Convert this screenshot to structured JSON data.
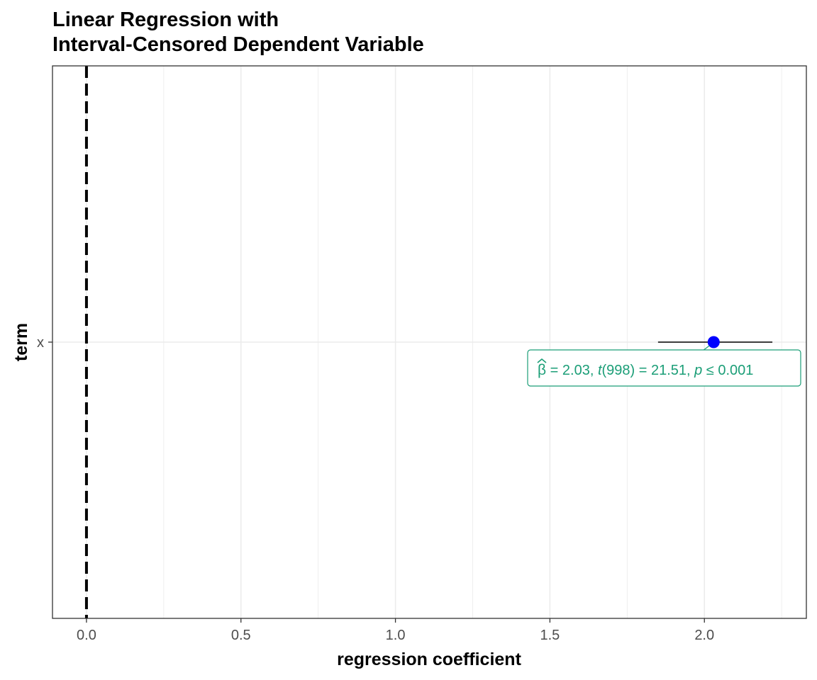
{
  "chart_data": {
    "type": "scatter",
    "title": "Linear Regression with\nInterval-Censored Dependent Variable",
    "xlabel": "regression coefficient",
    "ylabel": "term",
    "xlim": [
      -0.11,
      2.33
    ],
    "x_ticks": [
      0.0,
      0.5,
      1.0,
      1.5,
      2.0
    ],
    "x_tick_labels": [
      "0.0",
      "0.5",
      "1.0",
      "1.5",
      "2.0"
    ],
    "categories": [
      "x"
    ],
    "series": [
      {
        "values": [
          {
            "term": "x",
            "estimate": 2.03,
            "conf_low": 1.85,
            "conf_high": 2.22
          }
        ]
      }
    ],
    "reference_line": {
      "x": 0,
      "style": "dashed"
    },
    "annotation": {
      "term": "x",
      "beta_symbol": "β",
      "text_1": " = 2.03, ",
      "t_symbol": "t",
      "text_2": "(998) = 21.51, ",
      "p_symbol": "p",
      "text_3": " ≤ 0.001"
    },
    "grid": true,
    "colors": {
      "point": "#0000ff",
      "annotation": "#1b9e77",
      "errorbar": "#000000",
      "grid": "#ebebeb",
      "reference_line": "#000000"
    }
  }
}
